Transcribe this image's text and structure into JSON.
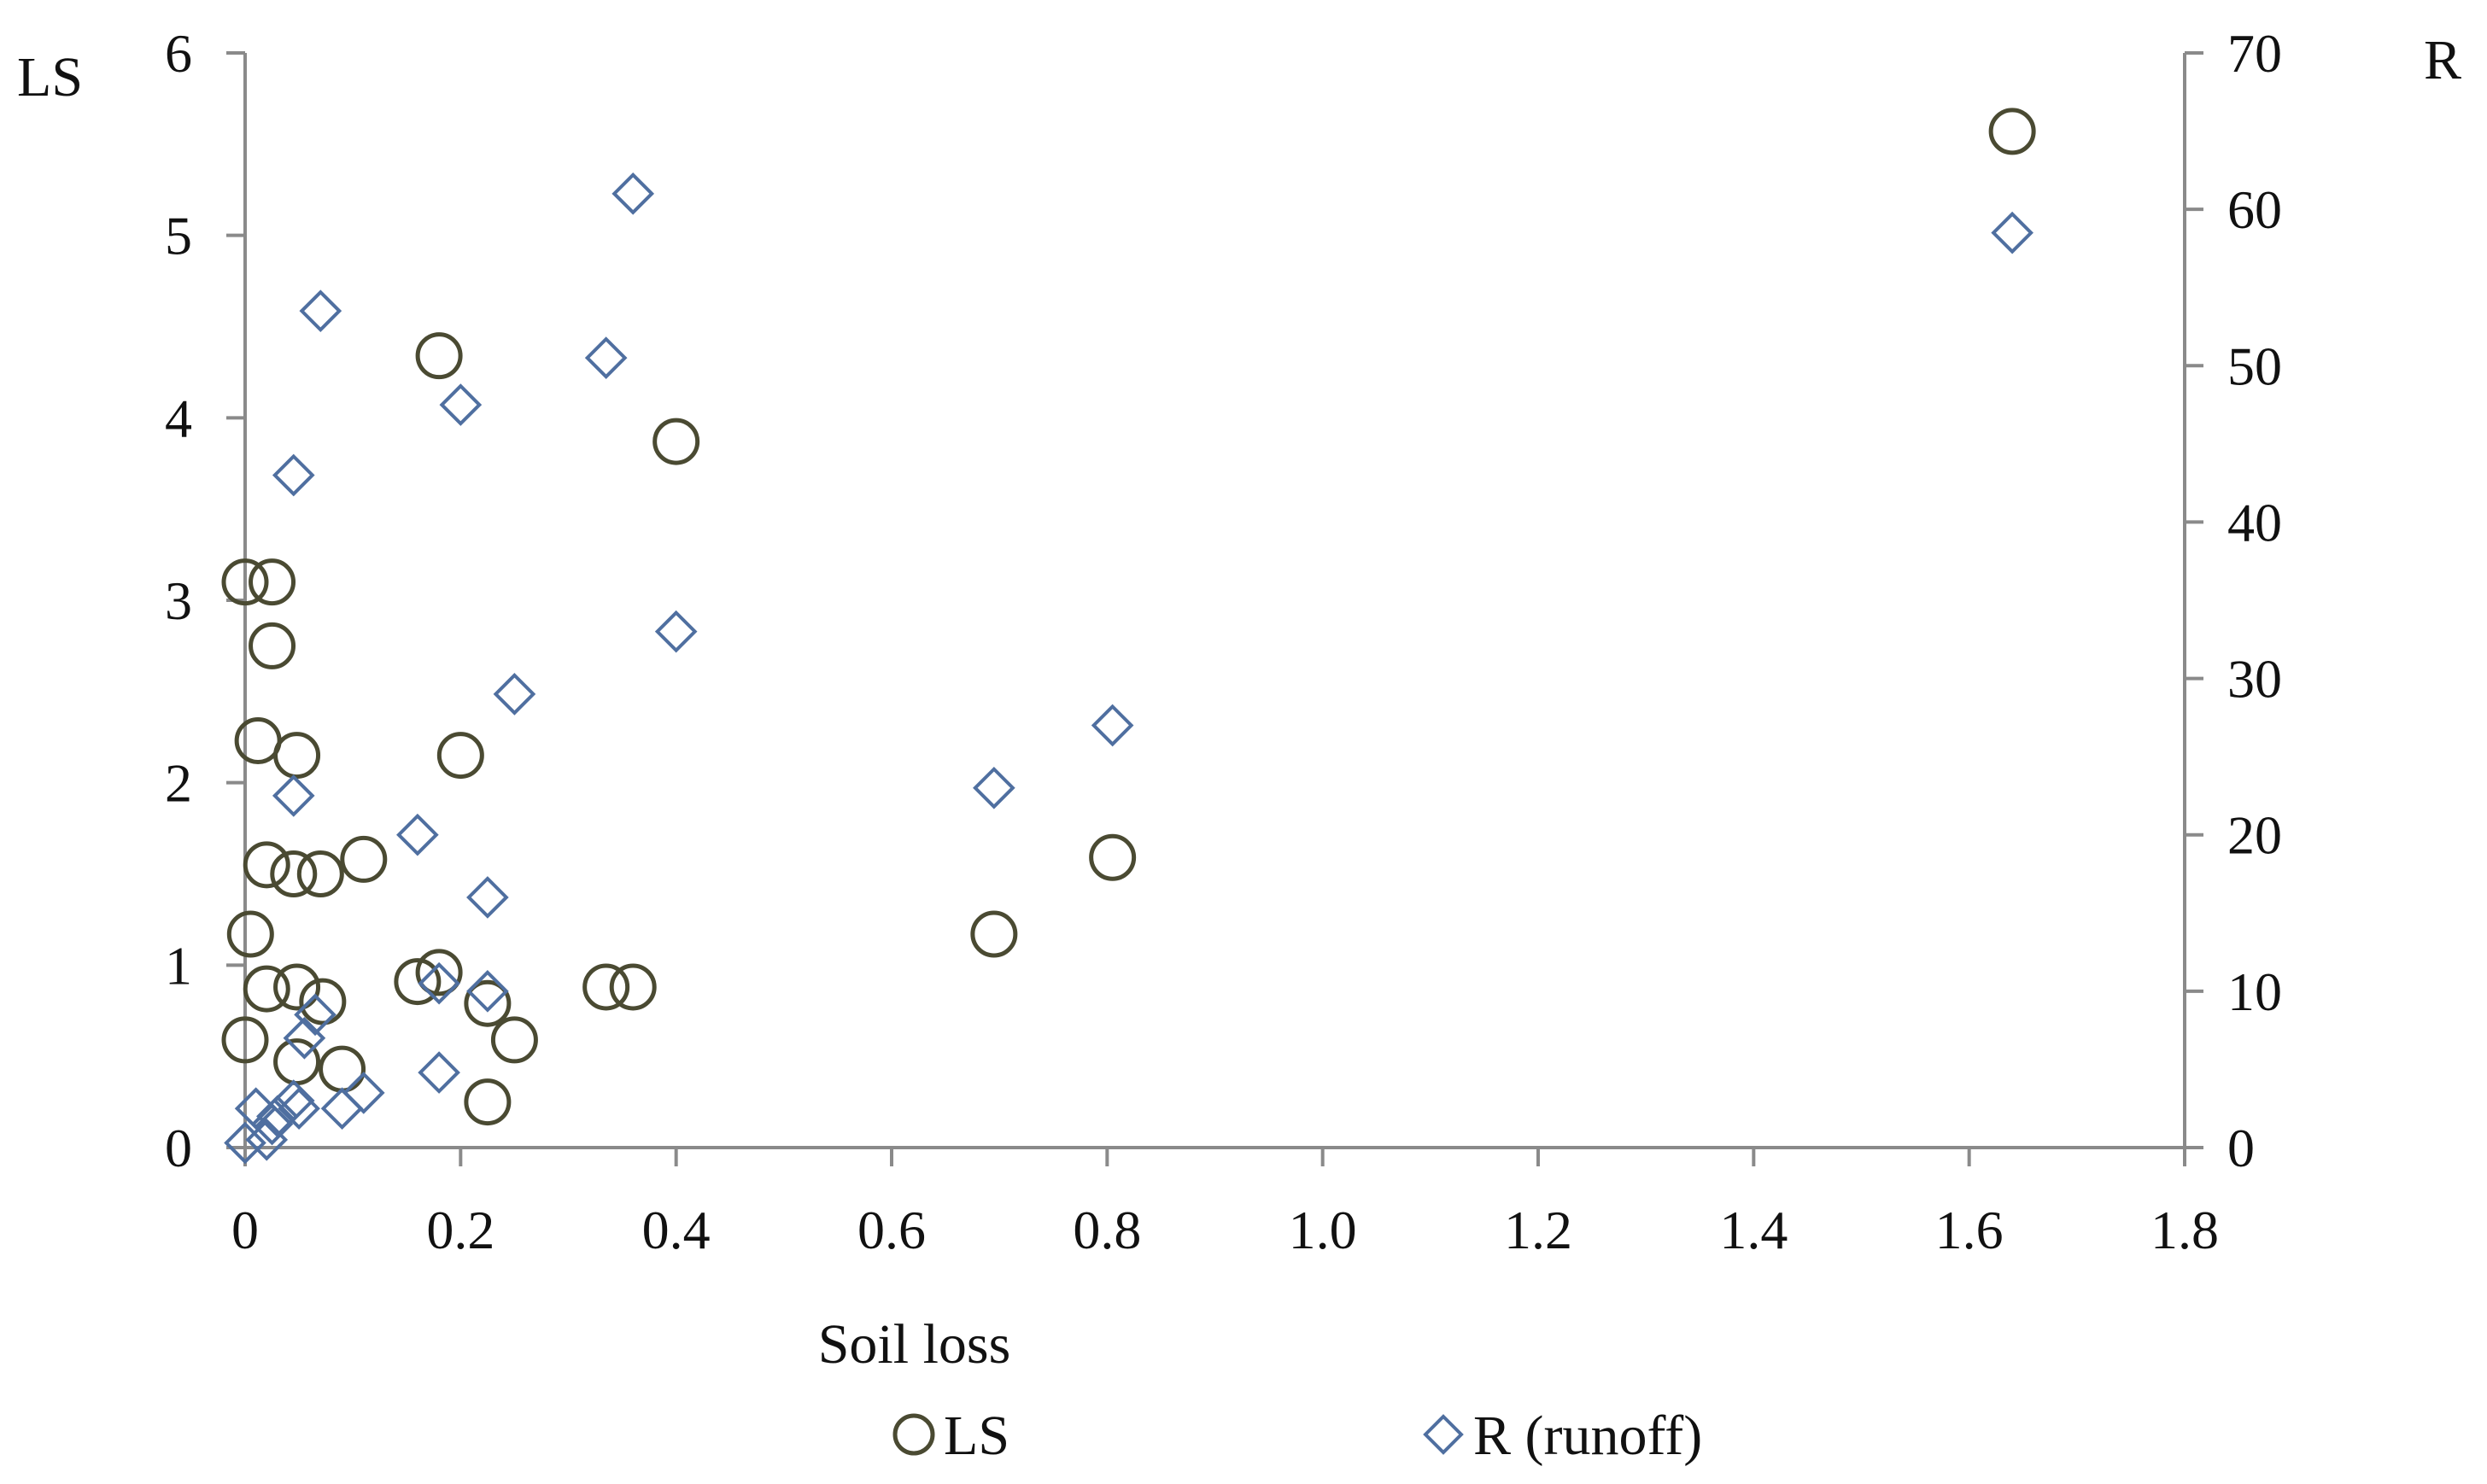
{
  "chart_data": {
    "type": "scatter",
    "title": "",
    "xlabel": "Soil loss",
    "ylabel_left": "LS",
    "ylabel_right": "R",
    "xlim": [
      0,
      1.8
    ],
    "ylim_left": [
      0,
      6
    ],
    "ylim_right": [
      0,
      70
    ],
    "x_ticks": [
      "0",
      "0.2",
      "0.4",
      "0.6",
      "0.8",
      "1.0",
      "1.2",
      "1.4",
      "1.6",
      "1.8"
    ],
    "y_ticks_left": [
      "0",
      "1",
      "2",
      "3",
      "4",
      "5",
      "6"
    ],
    "y_ticks_right": [
      "0",
      "10",
      "20",
      "30",
      "40",
      "50",
      "60",
      "70"
    ],
    "grid": false,
    "legend_position": "bottom",
    "colors": {
      "ls": "#4a4a32",
      "r": "#4f6fa0",
      "axis": "#8a8a8a",
      "text": "#111111"
    },
    "series": [
      {
        "name": "LS",
        "marker": "circle",
        "axis": "left",
        "points": [
          [
            0.0,
            3.1
          ],
          [
            0.025,
            3.1
          ],
          [
            0.025,
            2.75
          ],
          [
            0.012,
            2.23
          ],
          [
            0.048,
            2.15
          ],
          [
            0.02,
            1.55
          ],
          [
            0.045,
            1.5
          ],
          [
            0.07,
            1.5
          ],
          [
            0.11,
            1.58
          ],
          [
            0.005,
            1.17
          ],
          [
            0.02,
            0.87
          ],
          [
            0.048,
            0.88
          ],
          [
            0.072,
            0.8
          ],
          [
            0.0,
            0.59
          ],
          [
            0.048,
            0.47
          ],
          [
            0.09,
            0.43
          ],
          [
            0.16,
            0.91
          ],
          [
            0.18,
            0.96
          ],
          [
            0.225,
            0.79
          ],
          [
            0.25,
            0.59
          ],
          [
            0.225,
            0.25
          ],
          [
            0.18,
            4.34
          ],
          [
            0.2,
            2.15
          ],
          [
            0.335,
            0.88
          ],
          [
            0.36,
            0.88
          ],
          [
            0.4,
            3.87
          ],
          [
            0.695,
            1.17
          ],
          [
            0.805,
            1.59
          ],
          [
            1.64,
            5.57
          ]
        ]
      },
      {
        "name": "R (runoff)",
        "marker": "diamond",
        "axis": "right",
        "points": [
          [
            0.0,
            0.3
          ],
          [
            0.01,
            2.5
          ],
          [
            0.02,
            0.5
          ],
          [
            0.025,
            1.5
          ],
          [
            0.03,
            2.0
          ],
          [
            0.045,
            3.0
          ],
          [
            0.05,
            2.5
          ],
          [
            0.055,
            7.0
          ],
          [
            0.065,
            8.5
          ],
          [
            0.09,
            2.5
          ],
          [
            0.11,
            3.5
          ],
          [
            0.045,
            43.0
          ],
          [
            0.07,
            53.5
          ],
          [
            0.045,
            22.5
          ],
          [
            0.16,
            20.0
          ],
          [
            0.18,
            10.5
          ],
          [
            0.18,
            4.8
          ],
          [
            0.2,
            47.5
          ],
          [
            0.225,
            16.0
          ],
          [
            0.225,
            10.0
          ],
          [
            0.25,
            29.0
          ],
          [
            0.335,
            50.5
          ],
          [
            0.36,
            61.0
          ],
          [
            0.4,
            33.0
          ],
          [
            0.695,
            23.0
          ],
          [
            0.805,
            27.0
          ],
          [
            1.64,
            58.5
          ]
        ]
      }
    ]
  }
}
